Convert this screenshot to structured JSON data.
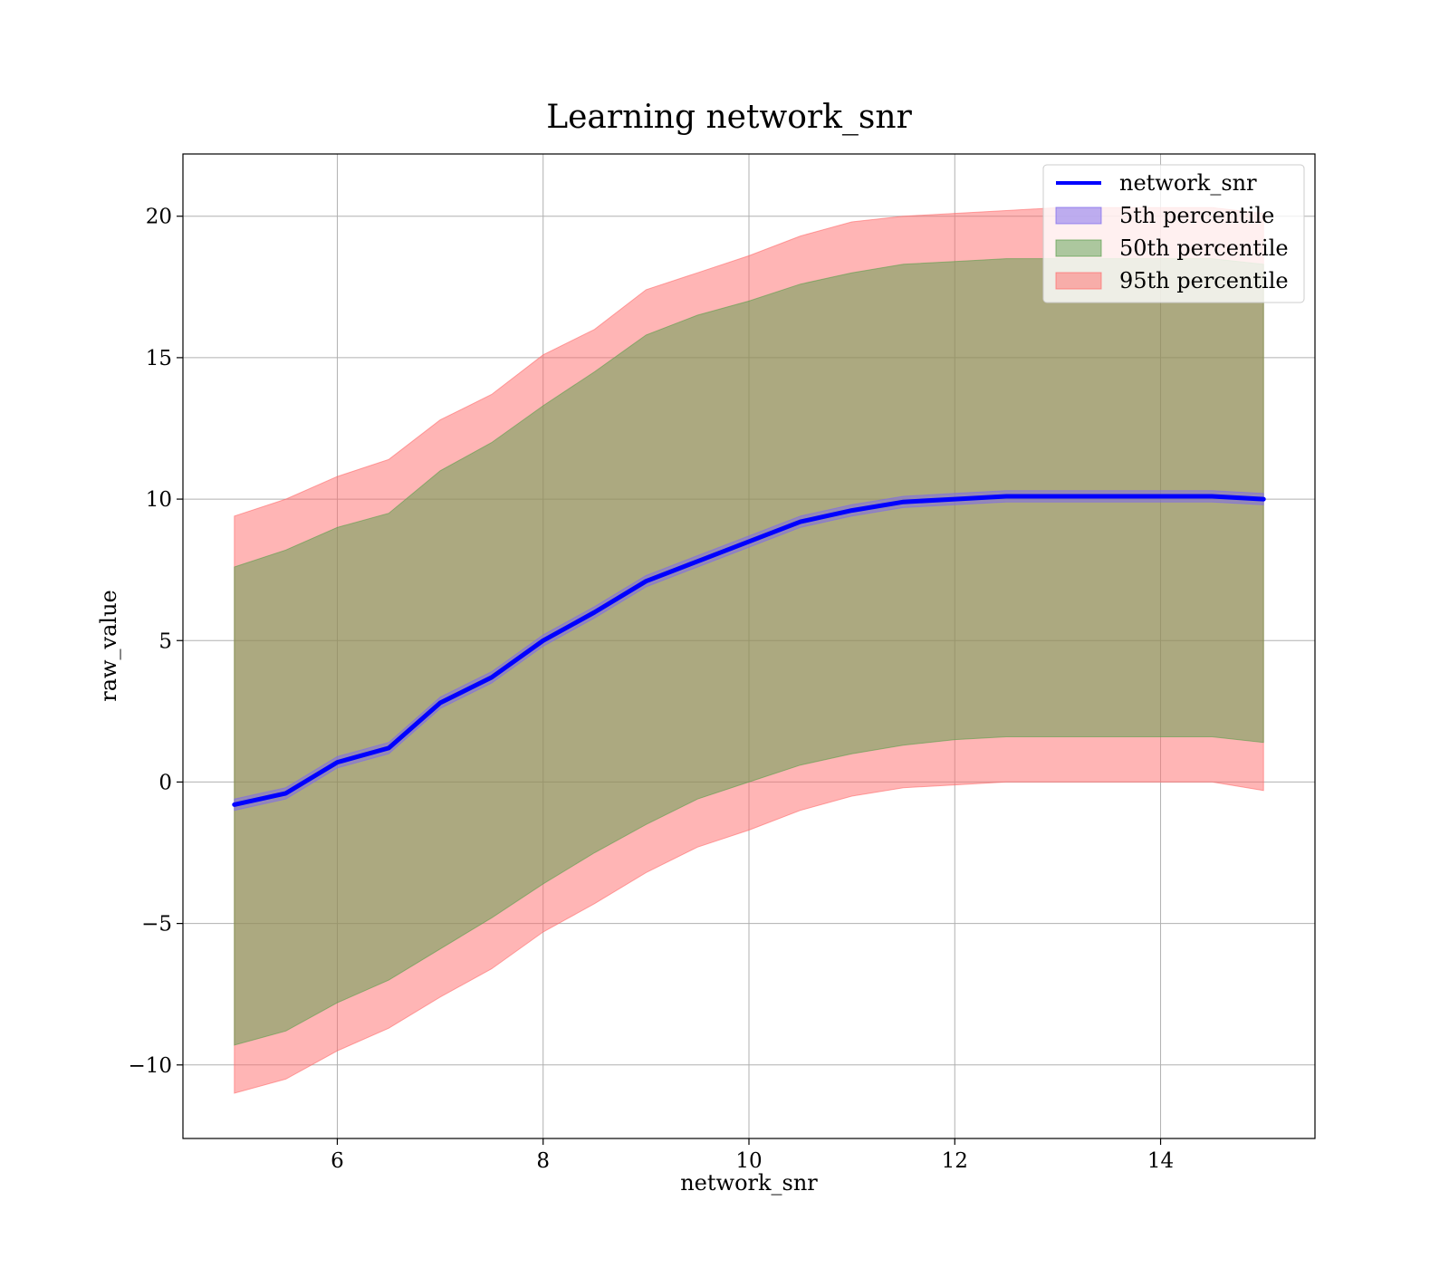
{
  "chart_data": {
    "type": "area",
    "title": "Learning network_snr",
    "xlabel": "network_snr",
    "ylabel": "raw_value",
    "xlim": [
      4.5,
      15.5
    ],
    "ylim": [
      -12.6,
      22.2
    ],
    "xticks": [
      6,
      8,
      10,
      12,
      14
    ],
    "yticks": [
      -10,
      -5,
      0,
      5,
      10,
      15,
      20
    ],
    "xtick_labels": [
      "6",
      "8",
      "10",
      "12",
      "14"
    ],
    "ytick_labels": [
      "−10",
      "−5",
      "0",
      "5",
      "10",
      "15",
      "20"
    ],
    "grid": true,
    "legend_position": "top-right",
    "x": [
      5,
      5.5,
      6,
      6.5,
      7,
      7.5,
      8,
      8.5,
      9,
      9.5,
      10,
      10.5,
      11,
      11.5,
      12,
      12.5,
      13,
      13.5,
      14,
      14.5,
      15
    ],
    "series": [
      {
        "name": "network_snr",
        "kind": "line",
        "color": "#0000ff",
        "values": [
          -0.8,
          -0.4,
          0.7,
          1.2,
          2.8,
          3.7,
          5.0,
          6.0,
          7.1,
          7.8,
          8.5,
          9.2,
          9.6,
          9.9,
          10.0,
          10.1,
          10.1,
          10.1,
          10.1,
          10.1,
          10.0
        ]
      },
      {
        "name": "5th percentile",
        "kind": "band",
        "color": "#7b68ee",
        "lower": [
          -1.0,
          -0.6,
          0.5,
          1.0,
          2.6,
          3.5,
          4.8,
          5.8,
          6.9,
          7.6,
          8.3,
          9.0,
          9.4,
          9.7,
          9.8,
          9.9,
          9.9,
          9.9,
          9.9,
          9.9,
          9.8
        ],
        "upper": [
          -0.6,
          -0.2,
          0.9,
          1.4,
          3.0,
          3.9,
          5.2,
          6.2,
          7.3,
          8.0,
          8.7,
          9.4,
          9.8,
          10.1,
          10.2,
          10.3,
          10.3,
          10.3,
          10.3,
          10.3,
          10.2
        ]
      },
      {
        "name": "50th percentile",
        "kind": "band",
        "color": "#5a9e4b",
        "lower": [
          -9.3,
          -8.8,
          -7.8,
          -7.0,
          -5.9,
          -4.8,
          -3.6,
          -2.5,
          -1.5,
          -0.6,
          0.0,
          0.6,
          1.0,
          1.3,
          1.5,
          1.6,
          1.6,
          1.6,
          1.6,
          1.6,
          1.4
        ],
        "upper": [
          7.6,
          8.2,
          9.0,
          9.5,
          11.0,
          12.0,
          13.3,
          14.5,
          15.8,
          16.5,
          17.0,
          17.6,
          18.0,
          18.3,
          18.4,
          18.5,
          18.5,
          18.5,
          18.5,
          18.5,
          18.3
        ]
      },
      {
        "name": "95th percentile",
        "kind": "band",
        "color": "#ff6b6b",
        "lower": [
          -11.0,
          -10.5,
          -9.5,
          -8.7,
          -7.6,
          -6.6,
          -5.3,
          -4.3,
          -3.2,
          -2.3,
          -1.7,
          -1.0,
          -0.5,
          -0.2,
          -0.1,
          0.0,
          0.0,
          0.0,
          0.0,
          0.0,
          -0.3
        ],
        "upper": [
          9.4,
          10.0,
          10.8,
          11.4,
          12.8,
          13.7,
          15.1,
          16.0,
          17.4,
          18.0,
          18.6,
          19.3,
          19.8,
          20.0,
          20.1,
          20.2,
          20.3,
          20.3,
          20.3,
          20.3,
          20.1
        ]
      }
    ]
  }
}
